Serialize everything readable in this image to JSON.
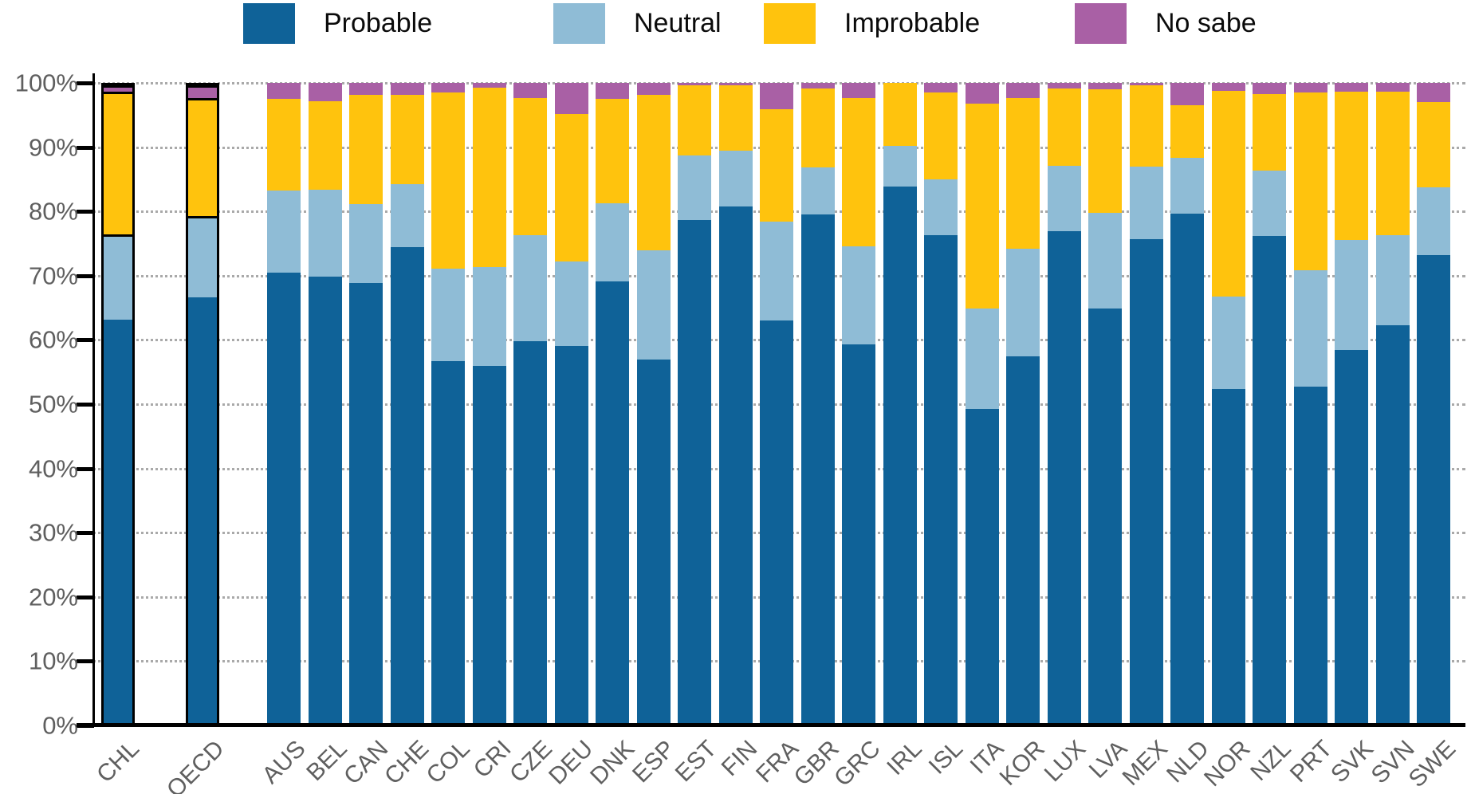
{
  "chart_data": {
    "type": "bar",
    "stacked": true,
    "value_unit": "%",
    "title": "",
    "legend_position": "top",
    "grid": "dotted-horizontal",
    "ylim": [
      0,
      100
    ],
    "ytick_labels": [
      "0%",
      "10%",
      "20%",
      "30%",
      "40%",
      "50%",
      "60%",
      "70%",
      "80%",
      "90%",
      "100%"
    ],
    "categories": [
      "CHL",
      "OECD",
      "AUS",
      "BEL",
      "CAN",
      "CHE",
      "COL",
      "CRI",
      "CZE",
      "DEU",
      "DNK",
      "ESP",
      "EST",
      "FIN",
      "FRA",
      "GBR",
      "GRC",
      "IRL",
      "ISL",
      "ITA",
      "KOR",
      "LUX",
      "LVA",
      "MEX",
      "NLD",
      "NOR",
      "NZL",
      "PRT",
      "SVK",
      "SVN",
      "SWE"
    ],
    "highlighted_categories": [
      "CHL",
      "OECD"
    ],
    "series": [
      {
        "name": "Probable",
        "color": "#0F6298",
        "values": [
          63.3,
          66.7,
          70.5,
          69.8,
          68.8,
          74.4,
          56.7,
          56.0,
          59.8,
          59.0,
          69.1,
          56.9,
          78.6,
          80.8,
          63.0,
          79.5,
          59.3,
          83.9,
          76.3,
          49.3,
          57.5,
          76.9,
          64.9,
          75.7,
          79.6,
          52.3,
          76.2,
          52.7,
          58.5,
          62.3,
          73.2
        ]
      },
      {
        "name": "Neutral",
        "color": "#8FBCD6",
        "values": [
          13.3,
          12.8,
          12.7,
          13.6,
          12.4,
          9.9,
          14.4,
          15.3,
          16.5,
          13.2,
          12.2,
          17.1,
          10.1,
          8.7,
          15.4,
          7.4,
          15.3,
          6.3,
          8.7,
          15.6,
          16.7,
          10.2,
          14.9,
          11.3,
          8.8,
          14.4,
          10.2,
          18.1,
          17.0,
          14.0,
          10.5
        ]
      },
      {
        "name": "Improbable",
        "color": "#FFC30D",
        "values": [
          22.4,
          18.5,
          14.3,
          13.7,
          17.0,
          13.9,
          27.4,
          27.9,
          21.4,
          23.0,
          16.2,
          24.2,
          10.9,
          10.1,
          17.5,
          12.2,
          23.0,
          9.8,
          13.5,
          31.9,
          23.4,
          12.0,
          19.2,
          12.6,
          8.1,
          32.1,
          11.9,
          27.7,
          23.1,
          22.4,
          13.3
        ]
      },
      {
        "name": "No sabe",
        "color": "#A960A5",
        "values": [
          1.0,
          2.0,
          2.5,
          2.9,
          1.8,
          1.8,
          1.5,
          0.8,
          2.3,
          4.8,
          2.5,
          1.8,
          0.4,
          0.4,
          4.1,
          0.9,
          2.4,
          0.0,
          1.5,
          3.2,
          2.4,
          0.9,
          1.0,
          0.4,
          3.5,
          1.2,
          1.7,
          1.5,
          1.4,
          1.3,
          3.0
        ]
      }
    ]
  }
}
